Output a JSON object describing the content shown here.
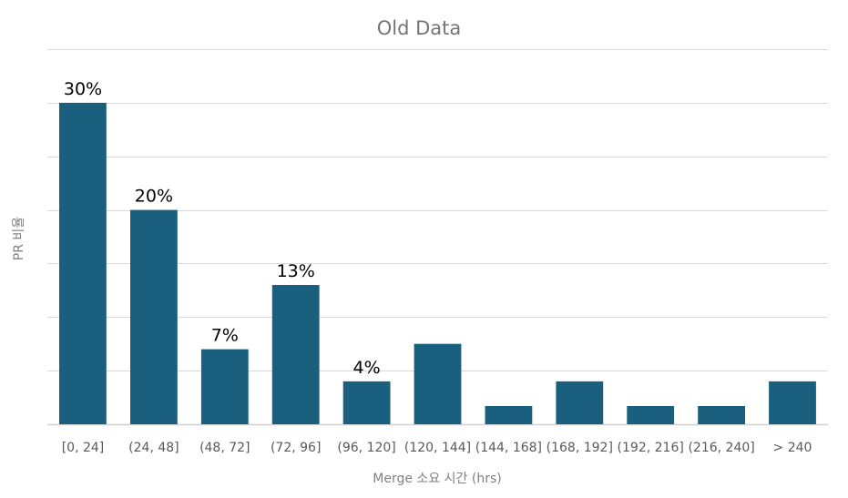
{
  "chart_data": {
    "type": "bar",
    "title": "Old Data",
    "xlabel": "Merge 소요  시간  (hrs)",
    "ylabel": "PR 비율",
    "categories": [
      "[0, 24]",
      "(24, 48]",
      "(48, 72]",
      "(72, 96]",
      "(96, 120]",
      "(120, 144]",
      "(144, 168]",
      "(168, 192]",
      "(192, 216]",
      "(216, 240]",
      "> 240"
    ],
    "values": [
      30,
      20,
      7,
      13,
      4,
      7.5,
      1.7,
      4,
      1.7,
      1.7,
      4
    ],
    "data_labels": [
      "30%",
      "20%",
      "7%",
      "13%",
      "4%",
      "",
      "",
      "",
      "",
      "",
      ""
    ],
    "ylim": [
      0,
      35
    ],
    "y_tick_step": 5,
    "y_tick_labels_visible": false,
    "grid": true,
    "legend": "none",
    "colors": {
      "bar": "#1b5f7f",
      "gridline": "#d9d9d9",
      "title": "#757575",
      "axis_title": "#808080",
      "tick_label": "#595959",
      "data_label": "#000000"
    }
  }
}
